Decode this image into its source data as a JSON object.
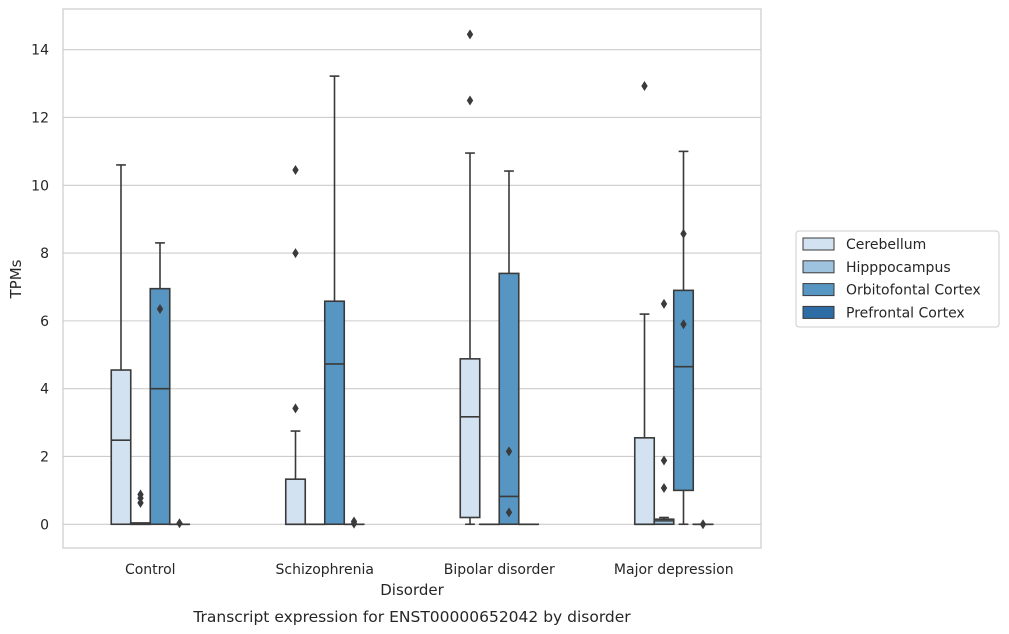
{
  "caption": "Transcript expression for ENST00000652042 by disorder",
  "chart_data": {
    "type": "box",
    "xlabel": "Disorder",
    "ylabel": "TPMs",
    "categories": [
      "Control",
      "Schizophrenia",
      "Bipolar disorder",
      "Major depression"
    ],
    "ylim": [
      -0.7,
      15.2
    ],
    "yticks": [
      0,
      2,
      4,
      6,
      8,
      10,
      12,
      14
    ],
    "grid": "horizontal",
    "legend_position": "right",
    "series": [
      {
        "name": "Cerebellum",
        "color": "#d3e2f0",
        "boxes": [
          {
            "q1": 0,
            "median": 2.48,
            "q3": 4.55,
            "whisker_low": 0,
            "whisker_high": 10.6,
            "outliers": []
          },
          {
            "q1": 0,
            "median": 0,
            "q3": 1.33,
            "whisker_low": 0,
            "whisker_high": 2.75,
            "outliers": [
              3.42,
              8.0,
              10.45
            ]
          },
          {
            "q1": 0.2,
            "median": 3.17,
            "q3": 4.88,
            "whisker_low": 0,
            "whisker_high": 10.95,
            "outliers": [
              12.5,
              14.45
            ]
          },
          {
            "q1": 0,
            "median": 0,
            "q3": 2.55,
            "whisker_low": 0,
            "whisker_high": 6.2,
            "outliers": [
              12.93
            ]
          }
        ]
      },
      {
        "name": "Hipppocampus",
        "color": "#9ec3de",
        "boxes": [
          {
            "q1": 0,
            "median": 0,
            "q3": 0.04,
            "whisker_low": 0,
            "whisker_high": 0.04,
            "outliers": [
              0.63,
              0.77,
              0.88
            ]
          },
          {
            "q1": 0,
            "median": 0,
            "q3": 0,
            "whisker_low": 0,
            "whisker_high": 0,
            "outliers": []
          },
          {
            "q1": 0,
            "median": 0,
            "q3": 0,
            "whisker_low": 0,
            "whisker_high": 0,
            "outliers": []
          },
          {
            "q1": 0,
            "median": 0.1,
            "q3": 0.15,
            "whisker_low": 0,
            "whisker_high": 0.2,
            "outliers": [
              1.07,
              1.88,
              6.5
            ]
          }
        ]
      },
      {
        "name": "Orbitofontal Cortex",
        "color": "#5796c2",
        "boxes": [
          {
            "q1": 0,
            "median": 4.0,
            "q3": 6.95,
            "whisker_low": 0,
            "whisker_high": 8.3,
            "outliers": [
              6.35
            ]
          },
          {
            "q1": 0,
            "median": 4.73,
            "q3": 6.58,
            "whisker_low": 0,
            "whisker_high": 13.22,
            "outliers": []
          },
          {
            "q1": 0,
            "median": 0.82,
            "q3": 7.4,
            "whisker_low": 0,
            "whisker_high": 10.42,
            "outliers": [
              0.35,
              2.15
            ]
          },
          {
            "q1": 1.0,
            "median": 4.65,
            "q3": 6.9,
            "whisker_low": 0,
            "whisker_high": 11.0,
            "outliers": [
              5.9,
              8.57
            ]
          }
        ]
      },
      {
        "name": "Prefrontal Cortex",
        "color": "#2d6ca5",
        "boxes": [
          {
            "q1": 0,
            "median": 0,
            "q3": 0,
            "whisker_low": 0,
            "whisker_high": 0,
            "outliers": [
              0.03
            ]
          },
          {
            "q1": 0,
            "median": 0,
            "q3": 0,
            "whisker_low": 0,
            "whisker_high": 0,
            "outliers": [
              0.02,
              0.08
            ]
          },
          {
            "q1": 0,
            "median": 0,
            "q3": 0,
            "whisker_low": 0,
            "whisker_high": 0,
            "outliers": []
          },
          {
            "q1": 0,
            "median": 0,
            "q3": 0,
            "whisker_low": 0,
            "whisker_high": 0,
            "outliers": [
              0.0
            ]
          }
        ]
      }
    ]
  }
}
